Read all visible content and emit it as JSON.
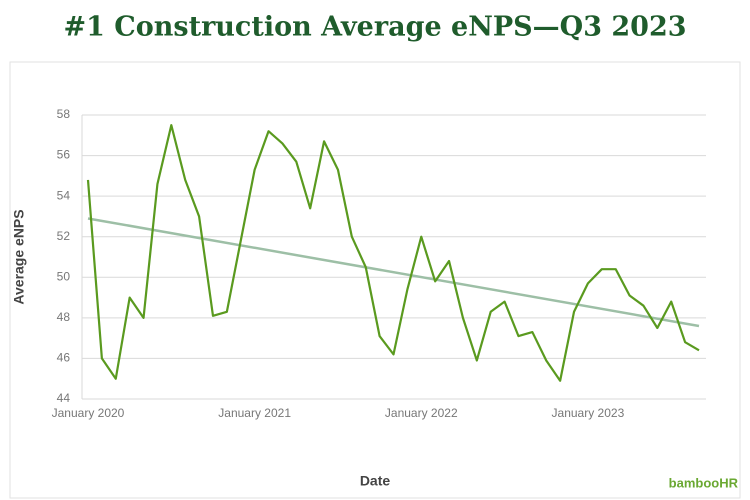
{
  "chart_data": {
    "type": "line",
    "title": "#1 Construction Average eNPS—Q3 2023",
    "xlabel": "Date",
    "ylabel": "Average eNPS",
    "logo": "bambooHR",
    "x": [
      "2020-01",
      "2020-02",
      "2020-03",
      "2020-04",
      "2020-05",
      "2020-06",
      "2020-07",
      "2020-08",
      "2020-09",
      "2020-10",
      "2020-11",
      "2020-12",
      "2021-01",
      "2021-02",
      "2021-03",
      "2021-04",
      "2021-05",
      "2021-06",
      "2021-07",
      "2021-08",
      "2021-09",
      "2021-10",
      "2021-11",
      "2021-12",
      "2022-01",
      "2022-02",
      "2022-03",
      "2022-04",
      "2022-05",
      "2022-06",
      "2022-07",
      "2022-08",
      "2022-09",
      "2022-10",
      "2022-11",
      "2022-12",
      "2023-01",
      "2023-02",
      "2023-03",
      "2023-04",
      "2023-05",
      "2023-06",
      "2023-07",
      "2023-08",
      "2023-09"
    ],
    "series": [
      {
        "color": "#5a9a1f",
        "values": [
          54.8,
          46.0,
          45.0,
          49.0,
          48.0,
          54.6,
          57.5,
          54.8,
          53.0,
          48.1,
          48.3,
          51.8,
          55.3,
          57.2,
          56.6,
          55.7,
          53.4,
          56.7,
          55.3,
          52.0,
          50.5,
          47.1,
          46.2,
          49.4,
          52.0,
          49.8,
          50.8,
          48.0,
          45.9,
          48.3,
          48.8,
          47.1,
          47.3,
          45.9,
          44.9,
          48.3,
          49.7,
          50.4,
          50.4,
          49.1,
          48.6,
          47.5,
          48.8,
          46.8,
          46.4
        ]
      }
    ],
    "trend": {
      "color": "#9dbfa6",
      "values": [
        52.9,
        47.6
      ]
    },
    "ylim": [
      44,
      58
    ],
    "yticks": [
      44,
      46,
      48,
      50,
      52,
      54,
      56,
      58
    ],
    "xticks": [
      {
        "value": "2020-01",
        "label": "January 2020"
      },
      {
        "value": "2021-01",
        "label": "January 2021"
      },
      {
        "value": "2022-01",
        "label": "January 2022"
      },
      {
        "value": "2023-01",
        "label": "January 2023"
      }
    ],
    "grid": true
  }
}
